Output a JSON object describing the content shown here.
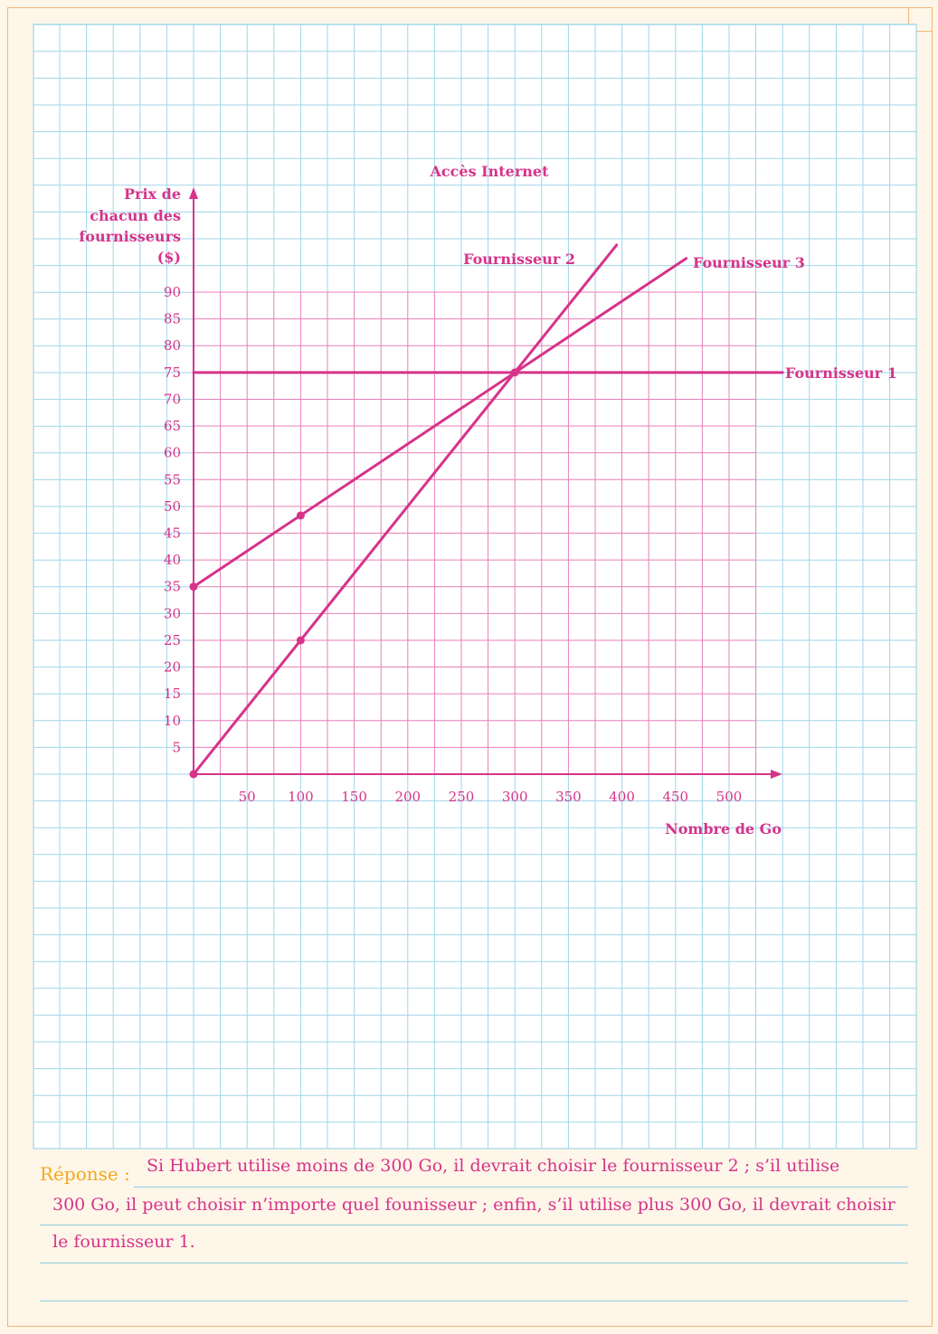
{
  "chart_data": {
    "type": "line",
    "title": "Accès Internet",
    "xlabel": "Nombre de Go",
    "ylabel": [
      "Prix de",
      "chacun des",
      "fournisseurs",
      "($)"
    ],
    "xlim": [
      0,
      500
    ],
    "ylim": [
      0,
      90
    ],
    "x_ticks": [
      50,
      100,
      150,
      200,
      250,
      300,
      350,
      400,
      450,
      500
    ],
    "y_ticks": [
      5,
      10,
      15,
      20,
      25,
      30,
      35,
      40,
      45,
      50,
      55,
      60,
      65,
      70,
      75,
      80,
      85,
      90
    ],
    "grid": true,
    "series": [
      {
        "name": "Fournisseur 1",
        "points": [
          [
            0,
            75
          ],
          [
            550,
            75
          ]
        ]
      },
      {
        "name": "Fournisseur 2",
        "points": [
          [
            0,
            0
          ],
          [
            395,
            98.8
          ]
        ],
        "markers": [
          [
            0,
            0
          ],
          [
            100,
            25
          ]
        ]
      },
      {
        "name": "Fournisseur 3",
        "points": [
          [
            0,
            35
          ],
          [
            460,
            96.3
          ]
        ],
        "markers": [
          [
            0,
            35
          ],
          [
            100,
            48.3
          ]
        ]
      }
    ],
    "intersection": [
      300,
      75
    ],
    "colors": {
      "line": "#d6338a",
      "grid": "#e87fb7",
      "paper_grid": "#9fd6ea"
    }
  },
  "answer": {
    "label": "Réponse :",
    "lines": [
      "Si Hubert utilise moins de 300 Go, il devrait choisir le fournisseur 2 ; s’il utilise",
      "300 Go, il peut choisir n’importe quel founisseur ; enfin, s’il utilise plus 300 Go, il devrait choisir",
      "le fournisseur 1."
    ]
  }
}
